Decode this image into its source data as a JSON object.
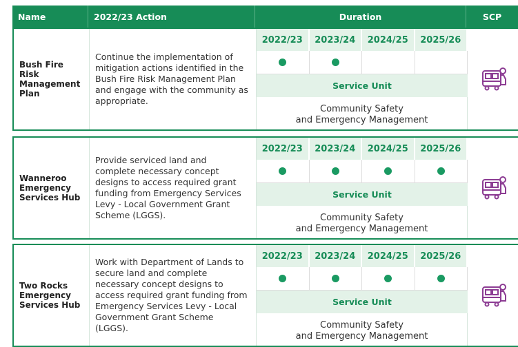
{
  "header": {
    "name": "Name",
    "action": "2022/23 Action",
    "duration": "Duration",
    "scp": "SCP"
  },
  "rows": [
    {
      "name": "Bush Fire Risk Management Plan",
      "action": "Continue the implementation of mitigation actions identified in the Bush Fire Risk Management Plan and engage with the community as appropriate.",
      "years": [
        "2022/23",
        "2023/24",
        "2024/25",
        "2025/26"
      ],
      "active": [
        true,
        true,
        false,
        false
      ],
      "service_unit_label": "Service Unit",
      "service_unit": "Community Safety\nand Emergency Management"
    },
    {
      "name": "Wanneroo Emergency Services Hub",
      "action": "Provide serviced land and complete necessary concept designs to access required grant funding from Emergency Services Levy - Local Government Grant Scheme (LGGS).",
      "years": [
        "2022/23",
        "2023/24",
        "2024/25",
        "2025/26"
      ],
      "active": [
        true,
        true,
        true,
        true
      ],
      "service_unit_label": "Service Unit",
      "service_unit": "Community Safety\nand Emergency Management"
    },
    {
      "name": "Two Rocks Emergency Services Hub",
      "action": "Work with Department of Lands to secure land and complete necessary concept designs to access required grant funding from Emergency Services Levy - Local Government Grant Scheme (LGGS).",
      "years": [
        "2022/23",
        "2023/24",
        "2024/25",
        "2025/26"
      ],
      "active": [
        true,
        true,
        true,
        true
      ],
      "service_unit_label": "Service Unit",
      "service_unit": "Community Safety\nand Emergency Management"
    }
  ]
}
